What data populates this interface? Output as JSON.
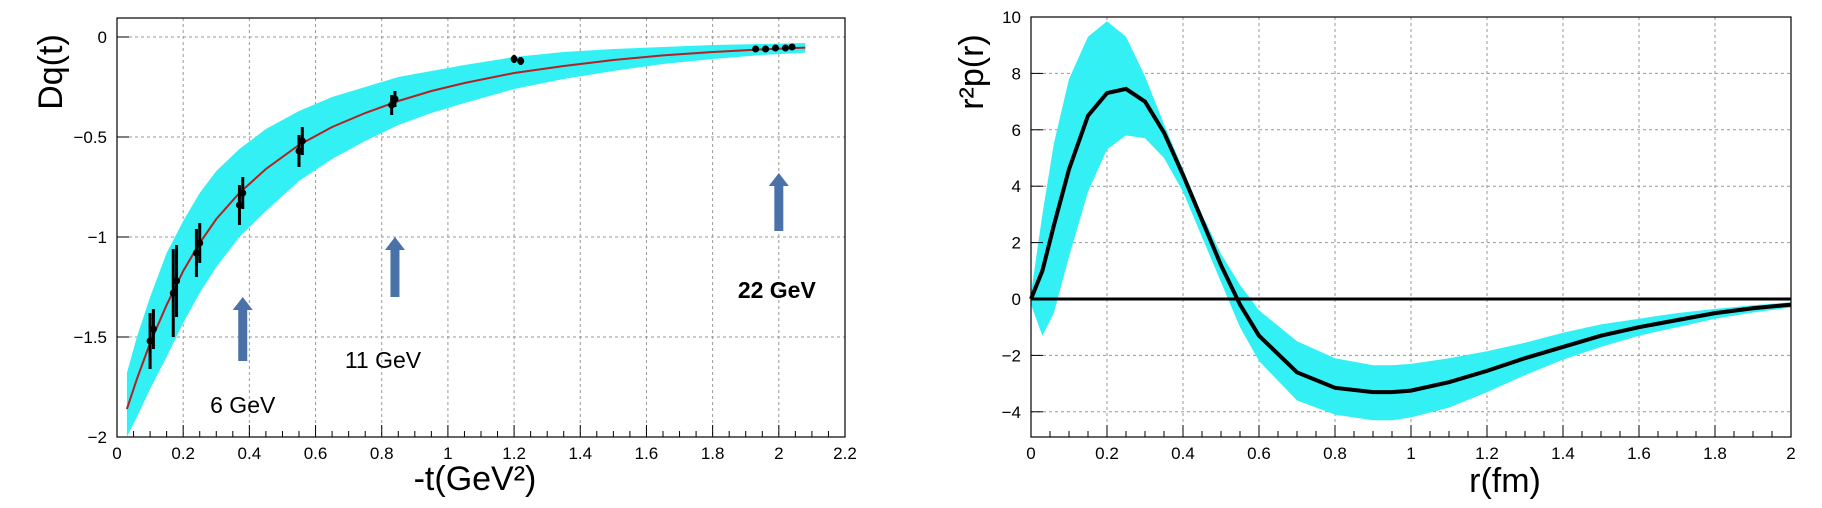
{
  "chart_data": [
    {
      "type": "line",
      "title": "",
      "xlabel": "-t(GeV²)",
      "ylabel": "Dq(t)",
      "xlim": [
        0,
        2.2
      ],
      "ylim": [
        -2,
        0.1
      ],
      "xticks": [
        {
          "v": 0,
          "label": "0"
        },
        {
          "v": 0.2,
          "label": "0.2"
        },
        {
          "v": 0.4,
          "label": "0.4"
        },
        {
          "v": 0.6,
          "label": "0.6"
        },
        {
          "v": 0.8,
          "label": "0.8"
        },
        {
          "v": 1.0,
          "label": "1"
        },
        {
          "v": 1.2,
          "label": "1.2"
        },
        {
          "v": 1.4,
          "label": "1.4"
        },
        {
          "v": 1.6,
          "label": "1.6"
        },
        {
          "v": 1.8,
          "label": "1.8"
        },
        {
          "v": 2.0,
          "label": "2"
        },
        {
          "v": 2.2,
          "label": "2.2"
        }
      ],
      "yticks": [
        {
          "v": 0,
          "label": "0"
        },
        {
          "v": -0.5,
          "label": "−0.5"
        },
        {
          "v": -1,
          "label": "−1"
        },
        {
          "v": -1.5,
          "label": "−1.5"
        },
        {
          "v": -2,
          "label": "−2"
        }
      ],
      "grid": true,
      "fit_curve": {
        "name": "fit",
        "color": "#b22222",
        "x": [
          0.03,
          0.06,
          0.1,
          0.15,
          0.2,
          0.25,
          0.3,
          0.37,
          0.45,
          0.55,
          0.65,
          0.75,
          0.85,
          0.95,
          1.05,
          1.2,
          1.35,
          1.5,
          1.65,
          1.8,
          1.95,
          2.08
        ],
        "y": [
          -1.86,
          -1.71,
          -1.53,
          -1.34,
          -1.17,
          -1.03,
          -0.91,
          -0.78,
          -0.66,
          -0.54,
          -0.45,
          -0.38,
          -0.32,
          -0.27,
          -0.23,
          -0.18,
          -0.145,
          -0.115,
          -0.092,
          -0.075,
          -0.062,
          -0.053
        ]
      },
      "uncertainty_band": {
        "color": "#33f0f5",
        "x": [
          0.03,
          0.06,
          0.1,
          0.15,
          0.2,
          0.25,
          0.3,
          0.37,
          0.45,
          0.55,
          0.65,
          0.75,
          0.85,
          0.95,
          1.05,
          1.2,
          1.35,
          1.5,
          1.65,
          1.8,
          1.95,
          2.08
        ],
        "upper": [
          -1.68,
          -1.5,
          -1.3,
          -1.08,
          -0.92,
          -0.78,
          -0.67,
          -0.56,
          -0.46,
          -0.37,
          -0.3,
          -0.25,
          -0.2,
          -0.17,
          -0.14,
          -0.1,
          -0.075,
          -0.06,
          -0.05,
          -0.04,
          -0.035,
          -0.03
        ],
        "lower": [
          -2.0,
          -1.9,
          -1.76,
          -1.6,
          -1.43,
          -1.28,
          -1.15,
          -1.0,
          -0.87,
          -0.72,
          -0.61,
          -0.52,
          -0.44,
          -0.38,
          -0.33,
          -0.26,
          -0.21,
          -0.17,
          -0.135,
          -0.11,
          -0.09,
          -0.078
        ]
      },
      "data_points": [
        {
          "x": 0.1,
          "y": -1.52,
          "err": 0.14
        },
        {
          "x": 0.11,
          "y": -1.46,
          "err": 0.1
        },
        {
          "x": 0.17,
          "y": -1.28,
          "err": 0.22
        },
        {
          "x": 0.18,
          "y": -1.22,
          "err": 0.18
        },
        {
          "x": 0.24,
          "y": -1.08,
          "err": 0.12
        },
        {
          "x": 0.25,
          "y": -1.03,
          "err": 0.1
        },
        {
          "x": 0.37,
          "y": -0.84,
          "err": 0.1
        },
        {
          "x": 0.38,
          "y": -0.78,
          "err": 0.08
        },
        {
          "x": 0.55,
          "y": -0.57,
          "err": 0.08
        },
        {
          "x": 0.56,
          "y": -0.52,
          "err": 0.07
        },
        {
          "x": 0.83,
          "y": -0.34,
          "err": 0.05
        },
        {
          "x": 0.84,
          "y": -0.31,
          "err": 0.04
        },
        {
          "x": 1.2,
          "y": -0.11,
          "err": 0.02
        },
        {
          "x": 1.22,
          "y": -0.12,
          "err": 0.02
        },
        {
          "x": 1.93,
          "y": -0.06,
          "err": 0.01
        },
        {
          "x": 1.96,
          "y": -0.06,
          "err": 0.01
        },
        {
          "x": 1.99,
          "y": -0.055,
          "err": 0.01
        },
        {
          "x": 2.02,
          "y": -0.055,
          "err": 0.01
        },
        {
          "x": 2.04,
          "y": -0.05,
          "err": 0.01
        }
      ],
      "annotations": [
        {
          "label": "6 GeV",
          "x": 0.38,
          "bold": false,
          "arrow_from": -1.62,
          "arrow_to": -1.3
        },
        {
          "label": "11 GeV",
          "x": 0.84,
          "bold": false,
          "arrow_from": -1.3,
          "arrow_to": -1.0
        },
        {
          "label": "22 GeV",
          "x": 2.0,
          "bold": true,
          "arrow_from": -0.97,
          "arrow_to": -0.68
        }
      ]
    },
    {
      "type": "line",
      "title": "",
      "xlabel": "r(fm)",
      "ylabel": "r²p(r)",
      "xlim": [
        0,
        2
      ],
      "ylim": [
        -5,
        10
      ],
      "xticks": [
        {
          "v": 0,
          "label": "0"
        },
        {
          "v": 0.2,
          "label": "0.2"
        },
        {
          "v": 0.4,
          "label": "0.4"
        },
        {
          "v": 0.6,
          "label": "0.6"
        },
        {
          "v": 0.8,
          "label": "0.8"
        },
        {
          "v": 1.0,
          "label": "1"
        },
        {
          "v": 1.2,
          "label": "1.2"
        },
        {
          "v": 1.4,
          "label": "1.4"
        },
        {
          "v": 1.6,
          "label": "1.6"
        },
        {
          "v": 1.8,
          "label": "1.8"
        },
        {
          "v": 2.0,
          "label": "2"
        }
      ],
      "yticks": [
        {
          "v": 10,
          "label": "10"
        },
        {
          "v": 8,
          "label": "8"
        },
        {
          "v": 6,
          "label": "6"
        },
        {
          "v": 4,
          "label": "4"
        },
        {
          "v": 2,
          "label": "2"
        },
        {
          "v": 0,
          "label": "0"
        },
        {
          "v": -2,
          "label": "−2"
        },
        {
          "v": -4,
          "label": "−4"
        }
      ],
      "grid": true,
      "zero_line": 0,
      "curve": {
        "name": "r2p",
        "color": "#000000",
        "x": [
          0,
          0.03,
          0.06,
          0.1,
          0.15,
          0.2,
          0.25,
          0.3,
          0.35,
          0.4,
          0.45,
          0.5,
          0.55,
          0.6,
          0.7,
          0.8,
          0.9,
          0.95,
          1.0,
          1.1,
          1.2,
          1.3,
          1.4,
          1.5,
          1.6,
          1.7,
          1.8,
          1.9,
          2.0
        ],
        "y": [
          0,
          1.0,
          2.6,
          4.6,
          6.5,
          7.3,
          7.45,
          7.0,
          5.9,
          4.4,
          2.8,
          1.2,
          -0.2,
          -1.3,
          -2.6,
          -3.15,
          -3.3,
          -3.3,
          -3.25,
          -2.95,
          -2.55,
          -2.1,
          -1.7,
          -1.3,
          -1.0,
          -0.75,
          -0.5,
          -0.33,
          -0.2
        ]
      },
      "uncertainty_band": {
        "color": "#33f0f5",
        "x": [
          0,
          0.03,
          0.06,
          0.1,
          0.15,
          0.2,
          0.25,
          0.3,
          0.35,
          0.4,
          0.45,
          0.5,
          0.55,
          0.6,
          0.7,
          0.8,
          0.9,
          0.95,
          1.0,
          1.1,
          1.2,
          1.3,
          1.4,
          1.5,
          1.6,
          1.7,
          1.8,
          1.9,
          2.0
        ],
        "upper": [
          0.2,
          3.0,
          5.5,
          7.8,
          9.3,
          9.85,
          9.3,
          7.9,
          6.2,
          4.6,
          3.0,
          1.6,
          0.5,
          -0.4,
          -1.5,
          -2.1,
          -2.35,
          -2.35,
          -2.3,
          -2.1,
          -1.85,
          -1.55,
          -1.2,
          -0.9,
          -0.7,
          -0.5,
          -0.35,
          -0.22,
          -0.12
        ],
        "lower": [
          -0.2,
          -1.3,
          -0.5,
          1.5,
          3.8,
          5.3,
          5.8,
          5.7,
          5.0,
          3.8,
          2.2,
          0.6,
          -1.0,
          -2.2,
          -3.6,
          -4.1,
          -4.3,
          -4.3,
          -4.2,
          -3.85,
          -3.3,
          -2.7,
          -2.15,
          -1.7,
          -1.3,
          -1.0,
          -0.7,
          -0.48,
          -0.3
        ]
      }
    }
  ]
}
